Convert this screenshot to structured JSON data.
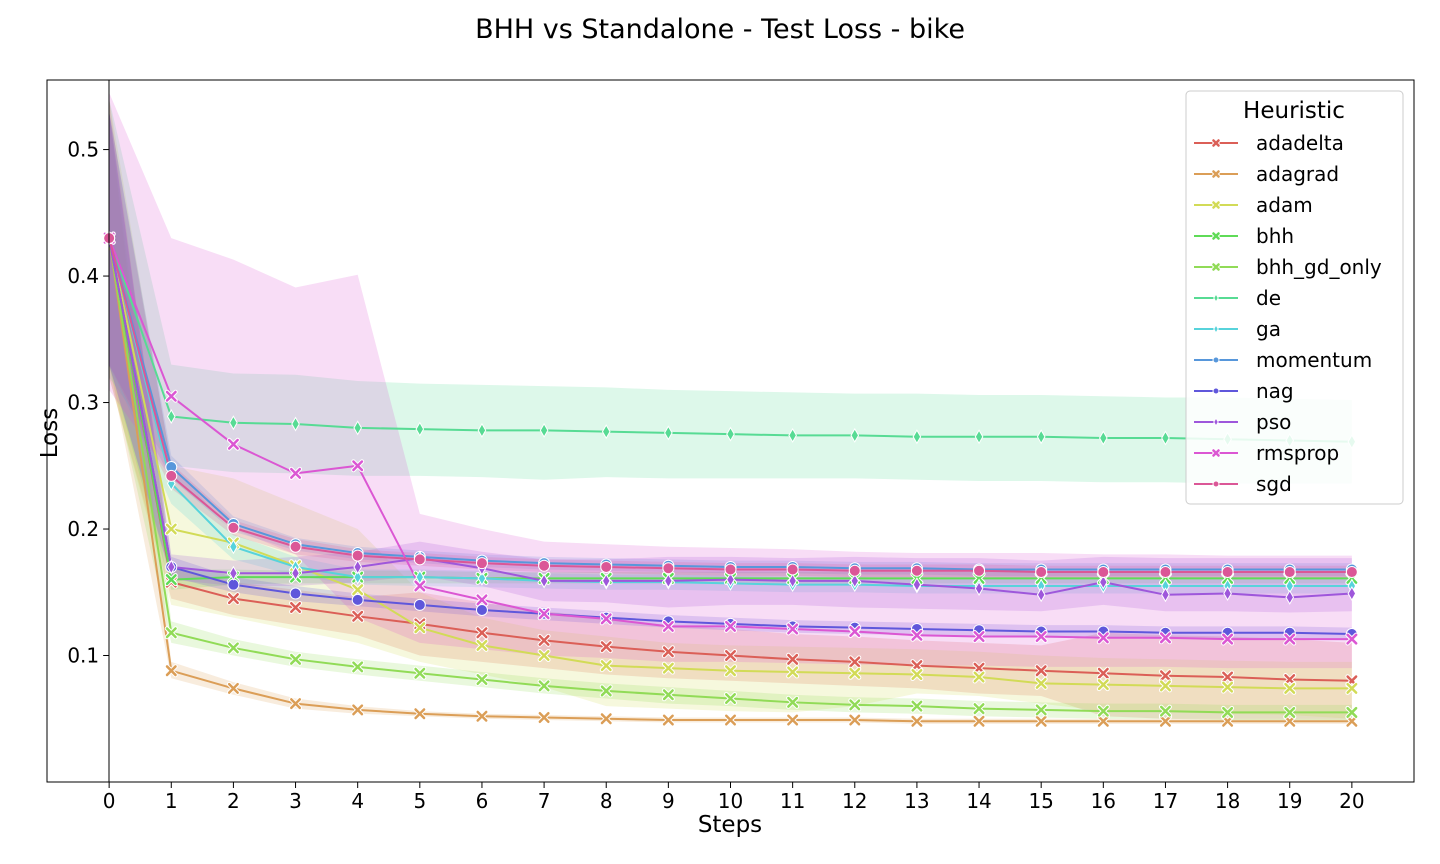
{
  "chart_data": {
    "type": "line",
    "title": "BHH vs Standalone - Test Loss - bike",
    "xlabel": "Steps",
    "ylabel": "Loss",
    "x": [
      0,
      1,
      2,
      3,
      4,
      5,
      6,
      7,
      8,
      9,
      10,
      11,
      12,
      13,
      14,
      15,
      16,
      17,
      18,
      19,
      20
    ],
    "xlim": [
      -1,
      21
    ],
    "ylim": [
      0,
      0.555
    ],
    "yticks": [
      0.1,
      0.2,
      0.3,
      0.4,
      0.5
    ],
    "ytick_labels": [
      "0.1",
      "0.2",
      "0.3",
      "0.4",
      "0.5"
    ],
    "grid": false,
    "legend": {
      "title": "Heuristic",
      "placement": "top-right"
    },
    "series": [
      {
        "name": "adadelta",
        "color": "#db5f57",
        "marker": "x",
        "values": [
          0.43,
          0.158,
          0.145,
          0.138,
          0.131,
          0.125,
          0.118,
          0.112,
          0.107,
          0.103,
          0.1,
          0.097,
          0.095,
          0.092,
          0.09,
          0.088,
          0.086,
          0.084,
          0.083,
          0.081,
          0.08
        ],
        "lower": [
          0.32,
          0.145,
          0.132,
          0.124,
          0.116,
          0.1,
          0.095,
          0.09,
          0.085,
          0.082,
          0.08,
          0.078,
          0.076,
          0.074,
          0.07,
          0.068,
          0.052,
          0.05,
          0.05,
          0.05,
          0.05
        ],
        "upper": [
          0.54,
          0.17,
          0.158,
          0.152,
          0.146,
          0.15,
          0.142,
          0.135,
          0.13,
          0.124,
          0.121,
          0.117,
          0.115,
          0.112,
          0.11,
          0.108,
          0.118,
          0.116,
          0.115,
          0.113,
          0.11
        ]
      },
      {
        "name": "adagrad",
        "color": "#db9e57",
        "marker": "x",
        "values": [
          0.43,
          0.088,
          0.074,
          0.062,
          0.057,
          0.054,
          0.052,
          0.051,
          0.05,
          0.049,
          0.049,
          0.049,
          0.049,
          0.048,
          0.048,
          0.048,
          0.048,
          0.048,
          0.048,
          0.048,
          0.048
        ],
        "lower": [
          0.33,
          0.082,
          0.069,
          0.058,
          0.054,
          0.052,
          0.05,
          0.049,
          0.048,
          0.047,
          0.047,
          0.047,
          0.047,
          0.046,
          0.046,
          0.046,
          0.046,
          0.046,
          0.046,
          0.046,
          0.046
        ],
        "upper": [
          0.53,
          0.095,
          0.079,
          0.066,
          0.06,
          0.056,
          0.054,
          0.053,
          0.052,
          0.051,
          0.051,
          0.051,
          0.051,
          0.05,
          0.05,
          0.05,
          0.05,
          0.05,
          0.05,
          0.05,
          0.05
        ]
      },
      {
        "name": "adam",
        "color": "#d2db57",
        "marker": "x",
        "values": [
          0.43,
          0.2,
          0.189,
          0.171,
          0.152,
          0.122,
          0.108,
          0.1,
          0.092,
          0.09,
          0.088,
          0.087,
          0.086,
          0.085,
          0.083,
          0.078,
          0.077,
          0.076,
          0.075,
          0.074,
          0.074
        ],
        "lower": [
          0.32,
          0.14,
          0.13,
          0.12,
          0.11,
          0.095,
          0.085,
          0.075,
          0.06,
          0.058,
          0.056,
          0.055,
          0.06,
          0.07,
          0.068,
          0.062,
          0.056,
          0.055,
          0.054,
          0.053,
          0.05
        ],
        "upper": [
          0.54,
          0.25,
          0.24,
          0.22,
          0.2,
          0.15,
          0.13,
          0.12,
          0.115,
          0.11,
          0.108,
          0.107,
          0.106,
          0.105,
          0.103,
          0.1,
          0.098,
          0.097,
          0.096,
          0.095,
          0.095
        ]
      },
      {
        "name": "bhh",
        "color": "#5fdb57",
        "marker": "x",
        "values": [
          0.43,
          0.16,
          0.162,
          0.162,
          0.162,
          0.162,
          0.161,
          0.161,
          0.161,
          0.161,
          0.161,
          0.161,
          0.161,
          0.161,
          0.161,
          0.161,
          0.161,
          0.161,
          0.161,
          0.161,
          0.161
        ],
        "lower": [
          0.33,
          0.152,
          0.156,
          0.157,
          0.157,
          0.157,
          0.157,
          0.157,
          0.157,
          0.157,
          0.157,
          0.157,
          0.157,
          0.157,
          0.157,
          0.157,
          0.157,
          0.157,
          0.157,
          0.157,
          0.157
        ],
        "upper": [
          0.53,
          0.168,
          0.168,
          0.167,
          0.167,
          0.167,
          0.166,
          0.166,
          0.166,
          0.166,
          0.166,
          0.166,
          0.166,
          0.166,
          0.166,
          0.166,
          0.166,
          0.166,
          0.166,
          0.166,
          0.166
        ]
      },
      {
        "name": "bhh_gd_only",
        "color": "#91db57",
        "marker": "x",
        "values": [
          0.43,
          0.118,
          0.106,
          0.097,
          0.091,
          0.086,
          0.081,
          0.076,
          0.072,
          0.069,
          0.066,
          0.063,
          0.061,
          0.06,
          0.058,
          0.057,
          0.056,
          0.056,
          0.055,
          0.055,
          0.055
        ],
        "lower": [
          0.33,
          0.11,
          0.1,
          0.091,
          0.085,
          0.08,
          0.075,
          0.07,
          0.066,
          0.062,
          0.06,
          0.057,
          0.055,
          0.054,
          0.052,
          0.051,
          0.05,
          0.05,
          0.049,
          0.049,
          0.049
        ],
        "upper": [
          0.53,
          0.127,
          0.113,
          0.103,
          0.097,
          0.092,
          0.087,
          0.082,
          0.078,
          0.075,
          0.072,
          0.069,
          0.067,
          0.066,
          0.064,
          0.063,
          0.062,
          0.062,
          0.061,
          0.061,
          0.061
        ]
      },
      {
        "name": "de",
        "color": "#57db94",
        "marker": "d",
        "values": [
          0.43,
          0.289,
          0.284,
          0.283,
          0.28,
          0.279,
          0.278,
          0.278,
          0.277,
          0.276,
          0.275,
          0.274,
          0.274,
          0.273,
          0.273,
          0.273,
          0.272,
          0.272,
          0.271,
          0.27,
          0.269
        ],
        "lower": [
          0.32,
          0.25,
          0.245,
          0.244,
          0.242,
          0.242,
          0.241,
          0.239,
          0.241,
          0.24,
          0.24,
          0.24,
          0.24,
          0.239,
          0.238,
          0.238,
          0.237,
          0.237,
          0.236,
          0.236,
          0.236
        ],
        "upper": [
          0.54,
          0.33,
          0.323,
          0.322,
          0.317,
          0.315,
          0.314,
          0.313,
          0.312,
          0.31,
          0.309,
          0.308,
          0.307,
          0.307,
          0.306,
          0.306,
          0.305,
          0.304,
          0.304,
          0.303,
          0.302
        ]
      },
      {
        "name": "ga",
        "color": "#57d3db",
        "marker": "d",
        "values": [
          0.43,
          0.236,
          0.186,
          0.17,
          0.162,
          0.162,
          0.161,
          0.159,
          0.158,
          0.158,
          0.157,
          0.156,
          0.156,
          0.155,
          0.155,
          0.155,
          0.155,
          0.155,
          0.155,
          0.155,
          0.155
        ],
        "lower": [
          0.33,
          0.22,
          0.176,
          0.163,
          0.156,
          0.155,
          0.154,
          0.153,
          0.152,
          0.152,
          0.151,
          0.15,
          0.15,
          0.149,
          0.149,
          0.149,
          0.149,
          0.149,
          0.149,
          0.149,
          0.149
        ],
        "upper": [
          0.53,
          0.252,
          0.196,
          0.178,
          0.168,
          0.168,
          0.167,
          0.165,
          0.164,
          0.164,
          0.163,
          0.162,
          0.162,
          0.161,
          0.161,
          0.161,
          0.161,
          0.161,
          0.161,
          0.161,
          0.161
        ]
      },
      {
        "name": "momentum",
        "color": "#5797db",
        "marker": "o",
        "values": [
          0.43,
          0.249,
          0.204,
          0.188,
          0.181,
          0.178,
          0.175,
          0.173,
          0.172,
          0.171,
          0.17,
          0.17,
          0.169,
          0.169,
          0.168,
          0.168,
          0.168,
          0.168,
          0.168,
          0.168,
          0.168
        ],
        "lower": [
          0.33,
          0.24,
          0.198,
          0.183,
          0.176,
          0.173,
          0.17,
          0.168,
          0.167,
          0.166,
          0.165,
          0.165,
          0.164,
          0.164,
          0.163,
          0.163,
          0.163,
          0.163,
          0.163,
          0.163,
          0.163
        ],
        "upper": [
          0.53,
          0.258,
          0.21,
          0.193,
          0.186,
          0.183,
          0.18,
          0.178,
          0.177,
          0.176,
          0.175,
          0.175,
          0.174,
          0.174,
          0.173,
          0.173,
          0.173,
          0.173,
          0.173,
          0.173,
          0.173
        ]
      },
      {
        "name": "nag",
        "color": "#5f57db",
        "marker": "o",
        "values": [
          0.43,
          0.17,
          0.156,
          0.149,
          0.144,
          0.14,
          0.136,
          0.133,
          0.13,
          0.127,
          0.125,
          0.123,
          0.122,
          0.121,
          0.12,
          0.119,
          0.119,
          0.118,
          0.118,
          0.118,
          0.117
        ],
        "lower": [
          0.33,
          0.162,
          0.15,
          0.143,
          0.139,
          0.135,
          0.131,
          0.128,
          0.125,
          0.122,
          0.12,
          0.118,
          0.117,
          0.116,
          0.115,
          0.114,
          0.114,
          0.113,
          0.113,
          0.113,
          0.112
        ],
        "upper": [
          0.53,
          0.178,
          0.162,
          0.155,
          0.149,
          0.145,
          0.141,
          0.138,
          0.135,
          0.132,
          0.13,
          0.128,
          0.127,
          0.126,
          0.125,
          0.124,
          0.124,
          0.123,
          0.123,
          0.123,
          0.122
        ]
      },
      {
        "name": "pso",
        "color": "#9e57db",
        "marker": "d",
        "values": [
          0.43,
          0.17,
          0.165,
          0.165,
          0.17,
          0.177,
          0.169,
          0.159,
          0.159,
          0.159,
          0.16,
          0.159,
          0.159,
          0.156,
          0.153,
          0.148,
          0.158,
          0.148,
          0.149,
          0.146,
          0.149
        ],
        "lower": [
          0.33,
          0.16,
          0.155,
          0.155,
          0.158,
          0.163,
          0.155,
          0.143,
          0.142,
          0.138,
          0.14,
          0.14,
          0.138,
          0.137,
          0.136,
          0.135,
          0.14,
          0.135,
          0.135,
          0.134,
          0.135
        ],
        "upper": [
          0.53,
          0.18,
          0.175,
          0.178,
          0.182,
          0.19,
          0.182,
          0.176,
          0.176,
          0.178,
          0.178,
          0.177,
          0.178,
          0.177,
          0.177,
          0.175,
          0.178,
          0.177,
          0.177,
          0.177,
          0.177
        ]
      },
      {
        "name": "rmsprop",
        "color": "#db57d3",
        "marker": "x",
        "values": [
          0.43,
          0.305,
          0.267,
          0.244,
          0.25,
          0.155,
          0.144,
          0.133,
          0.129,
          0.123,
          0.123,
          0.121,
          0.119,
          0.116,
          0.115,
          0.115,
          0.114,
          0.114,
          0.113,
          0.113,
          0.113
        ],
        "lower": [
          0.31,
          0.24,
          0.2,
          0.18,
          0.13,
          0.11,
          0.105,
          0.1,
          0.098,
          0.095,
          0.095,
          0.094,
          0.093,
          0.092,
          0.092,
          0.091,
          0.091,
          0.091,
          0.09,
          0.09,
          0.09
        ],
        "upper": [
          0.545,
          0.43,
          0.413,
          0.391,
          0.401,
          0.212,
          0.2,
          0.19,
          0.188,
          0.186,
          0.185,
          0.184,
          0.182,
          0.181,
          0.181,
          0.181,
          0.18,
          0.18,
          0.179,
          0.179,
          0.179
        ]
      },
      {
        "name": "sgd",
        "color": "#db5797",
        "marker": "o",
        "values": [
          0.43,
          0.242,
          0.201,
          0.186,
          0.179,
          0.176,
          0.173,
          0.171,
          0.17,
          0.169,
          0.168,
          0.168,
          0.167,
          0.167,
          0.167,
          0.166,
          0.166,
          0.166,
          0.166,
          0.166,
          0.166
        ],
        "lower": [
          0.33,
          0.232,
          0.195,
          0.18,
          0.174,
          0.171,
          0.168,
          0.166,
          0.165,
          0.164,
          0.163,
          0.163,
          0.162,
          0.162,
          0.162,
          0.161,
          0.161,
          0.161,
          0.161,
          0.161,
          0.161
        ],
        "upper": [
          0.53,
          0.252,
          0.207,
          0.192,
          0.184,
          0.181,
          0.178,
          0.176,
          0.175,
          0.174,
          0.173,
          0.173,
          0.172,
          0.172,
          0.172,
          0.171,
          0.171,
          0.171,
          0.171,
          0.171,
          0.171
        ]
      }
    ]
  }
}
